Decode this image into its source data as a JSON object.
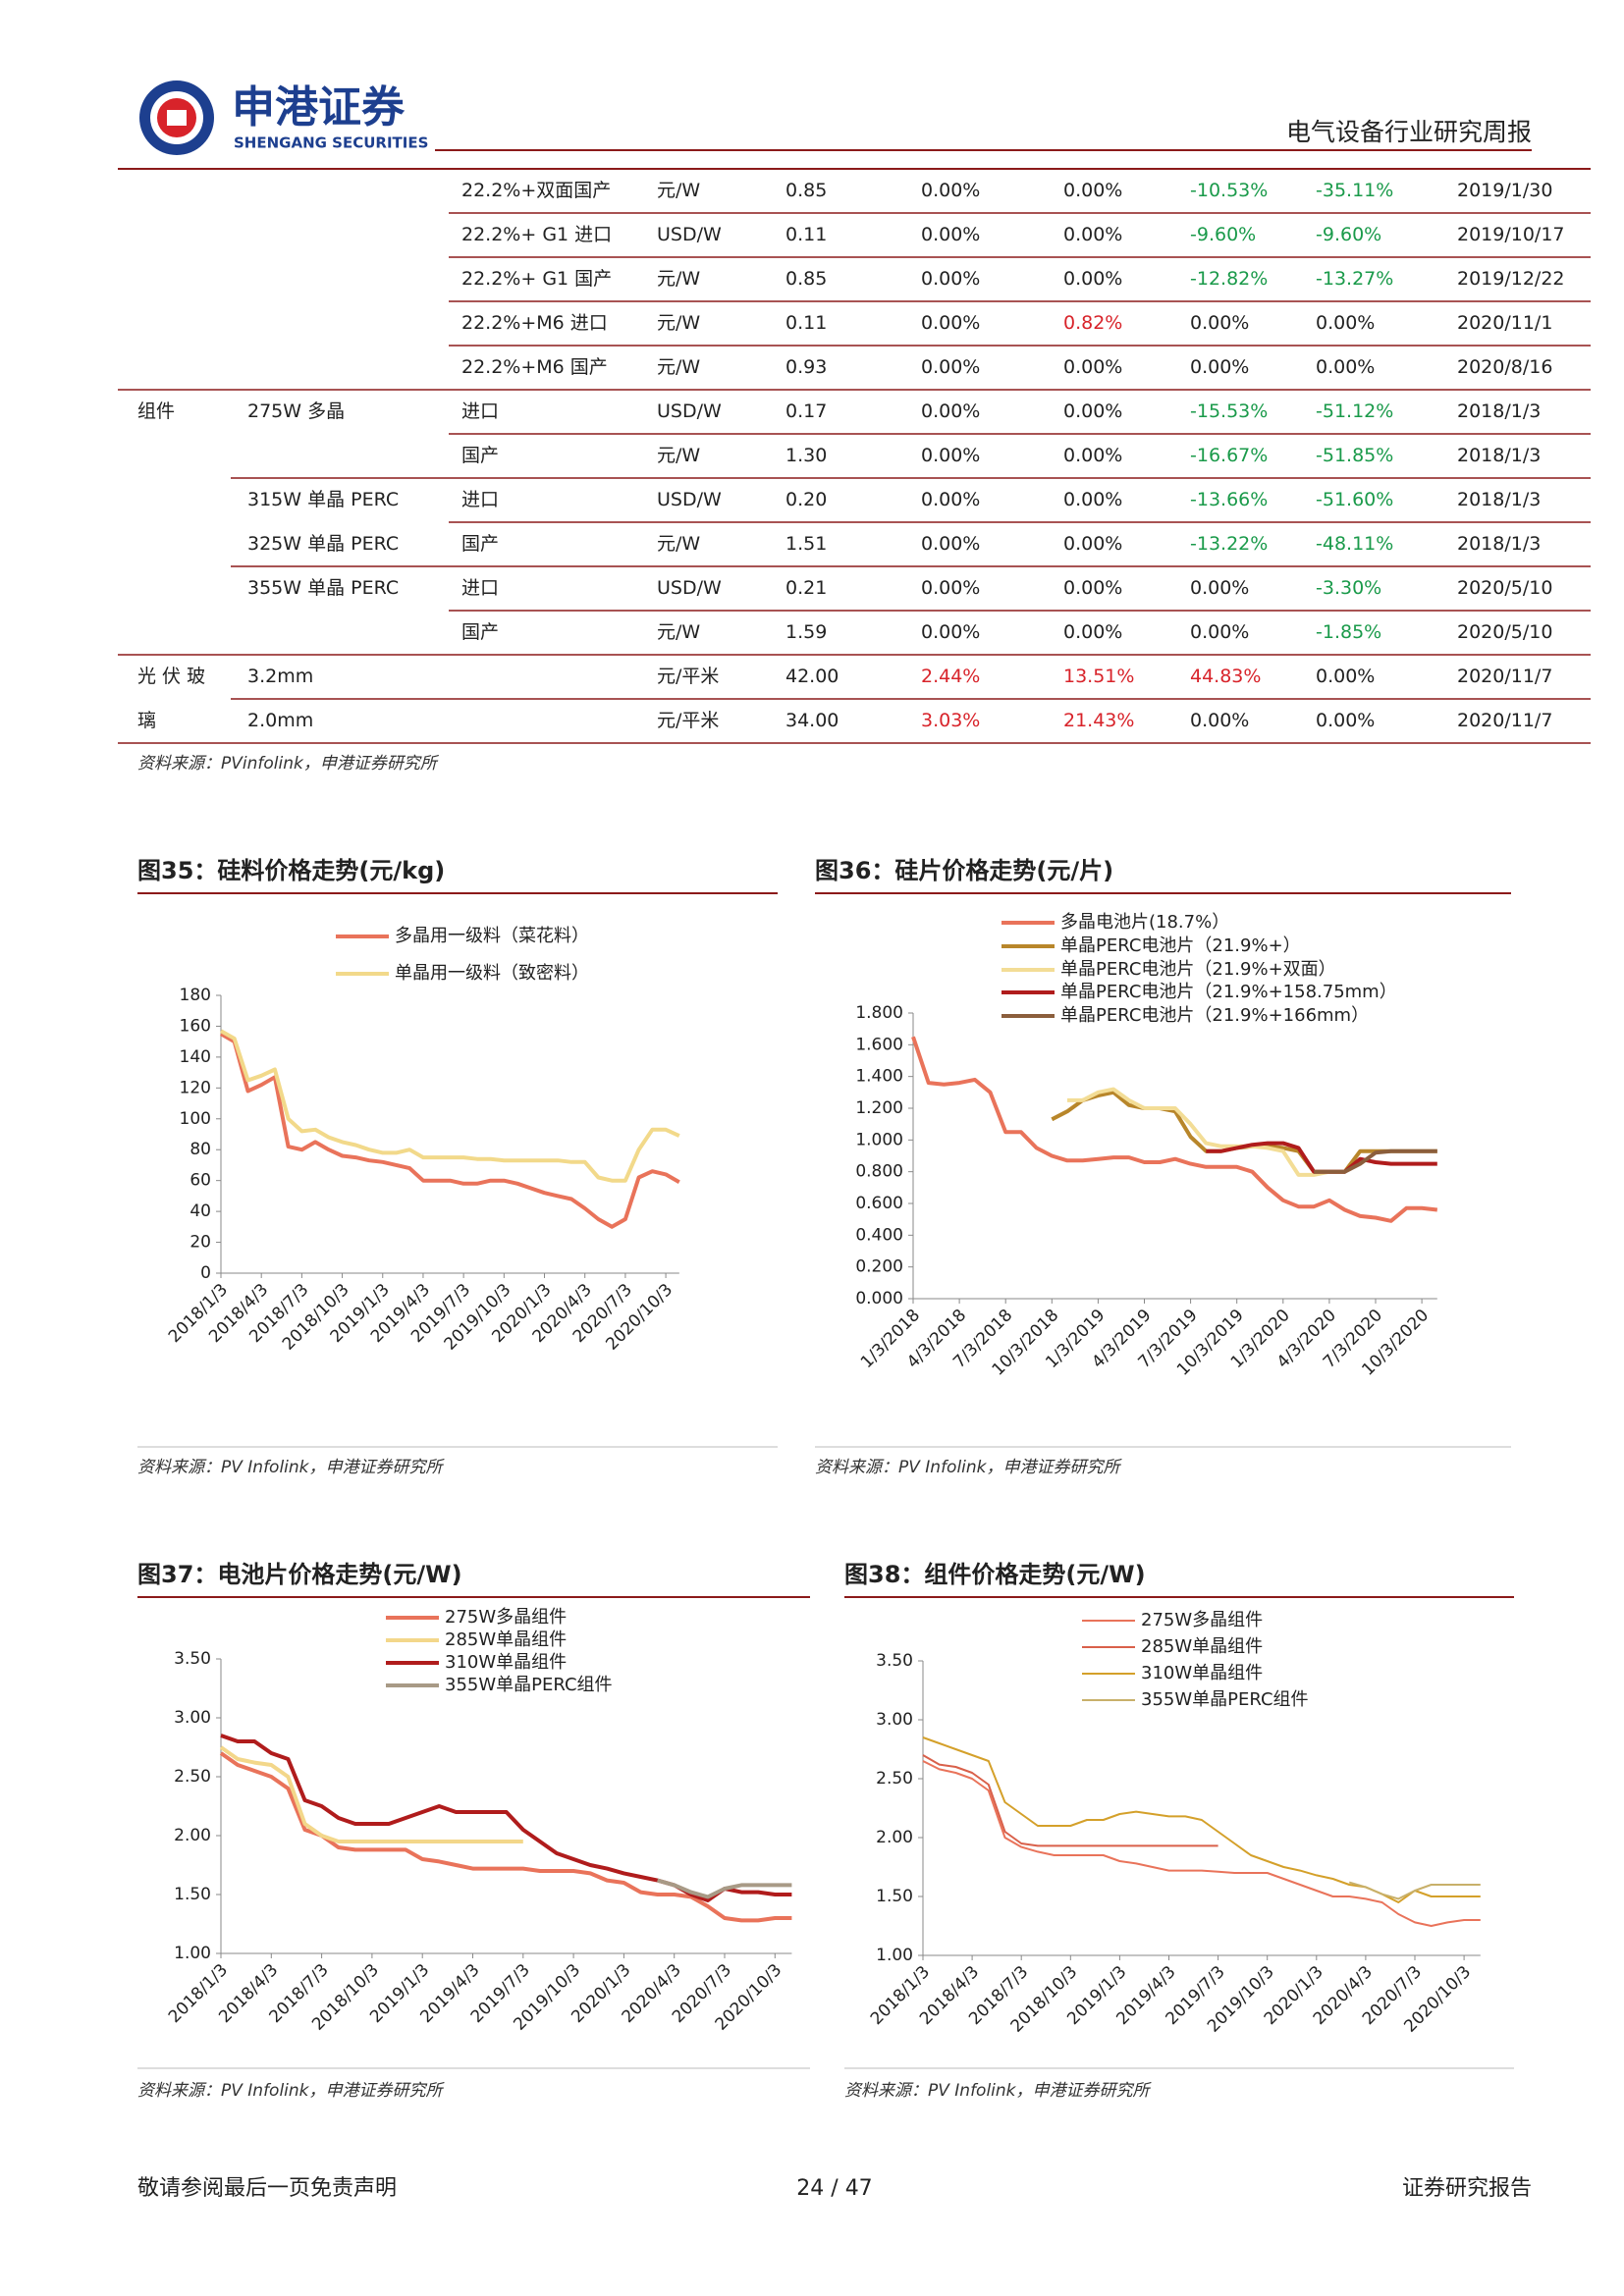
{
  "header": {
    "company": "申港证券",
    "company_en": "SHENGANG SECURITIES",
    "report_title": "电气设备行业研究周报"
  },
  "table": {
    "rows": [
      [
        null,
        null,
        "22.2%+双面国产",
        "元/W",
        "0.85",
        "0.00%",
        "0.00%",
        "-10.53%",
        "-35.11%",
        "2019/1/30"
      ],
      [
        null,
        null,
        "22.2%+ G1 进口",
        "USD/W",
        "0.11",
        "0.00%",
        "0.00%",
        "-9.60%",
        "-9.60%",
        "2019/10/17"
      ],
      [
        null,
        null,
        "22.2%+ G1 国产",
        "元/W",
        "0.85",
        "0.00%",
        "0.00%",
        "-12.82%",
        "-13.27%",
        "2019/12/22"
      ],
      [
        null,
        null,
        "22.2%+M6 进口",
        "元/W",
        "0.11",
        "0.00%",
        "0.82%",
        "0.00%",
        "0.00%",
        "2020/11/1"
      ],
      [
        null,
        null,
        "22.2%+M6 国产",
        "元/W",
        "0.93",
        "0.00%",
        "0.00%",
        "0.00%",
        "0.00%",
        "2020/8/16"
      ],
      [
        "组件",
        "275W 多晶",
        "进口",
        "USD/W",
        "0.17",
        "0.00%",
        "0.00%",
        "-15.53%",
        "-51.12%",
        "2018/1/3"
      ],
      [
        null,
        null,
        "国产",
        "元/W",
        "1.30",
        "0.00%",
        "0.00%",
        "-16.67%",
        "-51.85%",
        "2018/1/3"
      ],
      [
        null,
        "315W 单晶 PERC",
        "进口",
        "USD/W",
        "0.20",
        "0.00%",
        "0.00%",
        "-13.66%",
        "-51.60%",
        "2018/1/3"
      ],
      [
        null,
        "325W 单晶 PERC",
        "国产",
        "元/W",
        "1.51",
        "0.00%",
        "0.00%",
        "-13.22%",
        "-48.11%",
        "2018/1/3"
      ],
      [
        null,
        "355W 单晶 PERC",
        "进口",
        "USD/W",
        "0.21",
        "0.00%",
        "0.00%",
        "0.00%",
        "-3.30%",
        "2020/5/10"
      ],
      [
        null,
        null,
        "国产",
        "元/W",
        "1.59",
        "0.00%",
        "0.00%",
        "0.00%",
        "-1.85%",
        "2020/5/10"
      ],
      [
        "光 伏 玻",
        "3.2mm",
        null,
        "元/平米",
        "42.00",
        "2.44%",
        "13.51%",
        "44.83%",
        "0.00%",
        "2020/11/7"
      ],
      [
        "璃",
        "2.0mm",
        null,
        "元/平米",
        "34.00",
        "3.03%",
        "21.43%",
        "0.00%",
        "0.00%",
        "2020/11/7"
      ]
    ],
    "source": "资料来源：PVinfolink，申港证券研究所"
  },
  "chart_data": [
    {
      "type": "line",
      "title": "图35：硅料价格走势(元/kg)",
      "source": "资料来源：PV Infolink，申港证券研究所",
      "categories": [
        "2018/1/3",
        null,
        null,
        "2018/4/3",
        null,
        null,
        "2018/7/3",
        null,
        null,
        "2018/10/3",
        null,
        null,
        "2019/1/3",
        null,
        null,
        "2019/4/3",
        null,
        null,
        "2019/7/3",
        null,
        null,
        "2019/10/3",
        null,
        null,
        "2020/1/3",
        null,
        null,
        "2020/4/3",
        null,
        null,
        "2020/7/3",
        null,
        null,
        "2020/10/3",
        null
      ],
      "ylim": [
        0,
        180
      ],
      "yticks": [
        0,
        20,
        40,
        60,
        80,
        100,
        120,
        140,
        160,
        180
      ],
      "series": [
        {
          "name": "多晶用一级料（菜花料）",
          "color": "#e9735a",
          "values": [
            155,
            150,
            118,
            122,
            127,
            82,
            80,
            85,
            80,
            76,
            75,
            73,
            72,
            70,
            68,
            60,
            60,
            60,
            58,
            58,
            60,
            60,
            58,
            55,
            52,
            50,
            48,
            42,
            35,
            30,
            35,
            62,
            66,
            64,
            59
          ]
        },
        {
          "name": "单晶用一级料（致密料）",
          "color": "#f2d98a",
          "values": [
            157,
            152,
            125,
            128,
            132,
            100,
            92,
            93,
            88,
            85,
            83,
            80,
            78,
            78,
            80,
            75,
            75,
            75,
            75,
            74,
            74,
            73,
            73,
            73,
            73,
            73,
            72,
            72,
            62,
            60,
            60,
            80,
            93,
            93,
            89
          ]
        }
      ]
    },
    {
      "type": "line",
      "title": "图36：硅片价格走势(元/片)",
      "source": "资料来源：PV Infolink，申港证券研究所",
      "categories": [
        "1/3/2018",
        null,
        null,
        "4/3/2018",
        null,
        null,
        "7/3/2018",
        null,
        null,
        "10/3/2018",
        null,
        null,
        "1/3/2019",
        null,
        null,
        "4/3/2019",
        null,
        null,
        "7/3/2019",
        null,
        null,
        "10/3/2019",
        null,
        null,
        "1/3/2020",
        null,
        null,
        "4/3/2020",
        null,
        null,
        "7/3/2020",
        null,
        null,
        "10/3/2020",
        null
      ],
      "ylim": [
        0,
        1.8
      ],
      "yticks": [
        {
          "value": 0,
          "label": "0.000"
        },
        {
          "value": 0.2,
          "label": "0.200"
        },
        {
          "value": 0.4,
          "label": "0.400"
        },
        {
          "value": 0.6,
          "label": "0.600"
        },
        {
          "value": 0.8,
          "label": "0.800"
        },
        {
          "value": 1,
          "label": "1.000"
        },
        {
          "value": 1.2,
          "label": "1.200"
        },
        {
          "value": 1.4,
          "label": "1.400"
        },
        {
          "value": 1.6,
          "label": "1.600"
        },
        {
          "value": 1.8,
          "label": "1.800"
        }
      ],
      "series": [
        {
          "name": "多晶电池片(18.7%）",
          "color": "#e9735a",
          "values": [
            1.65,
            1.36,
            1.35,
            1.36,
            1.38,
            1.3,
            1.05,
            1.05,
            0.95,
            0.9,
            0.87,
            0.87,
            0.88,
            0.89,
            0.89,
            0.86,
            0.86,
            0.88,
            0.85,
            0.83,
            0.83,
            0.83,
            0.8,
            0.7,
            0.62,
            0.58,
            0.58,
            0.62,
            0.56,
            0.52,
            0.51,
            0.49,
            0.57,
            0.57,
            0.56
          ]
        },
        {
          "name": "单晶PERC电池片（21.9%+）",
          "color": "#b8862a",
          "values": [
            null,
            null,
            null,
            null,
            null,
            null,
            null,
            null,
            null,
            1.13,
            1.18,
            1.25,
            1.28,
            1.3,
            1.22,
            1.2,
            1.2,
            1.18,
            1.02,
            0.93,
            0.93,
            0.95,
            0.96,
            0.96,
            0.95,
            0.93,
            0.8,
            0.8,
            0.8,
            0.93,
            0.93,
            0.93,
            0.93,
            0.93,
            0.93
          ]
        },
        {
          "name": "单晶PERC电池片（21.9%+双面）",
          "color": "#f3dd96",
          "values": [
            null,
            null,
            null,
            null,
            null,
            null,
            null,
            null,
            null,
            null,
            1.25,
            1.25,
            1.3,
            1.32,
            1.25,
            1.2,
            1.2,
            1.2,
            1.1,
            0.98,
            0.96,
            0.96,
            0.96,
            0.95,
            0.93,
            0.78,
            0.78,
            0.8,
            null,
            null,
            null,
            null,
            null,
            null,
            null
          ]
        },
        {
          "name": "单晶PERC电池片（21.9%+158.75mm）",
          "color": "#b01c1c",
          "values": [
            null,
            null,
            null,
            null,
            null,
            null,
            null,
            null,
            null,
            null,
            null,
            null,
            null,
            null,
            null,
            null,
            null,
            null,
            null,
            0.93,
            0.93,
            0.95,
            0.97,
            0.98,
            0.98,
            0.95,
            0.8,
            0.8,
            0.8,
            0.88,
            0.86,
            0.85,
            0.85,
            0.85,
            0.85
          ]
        },
        {
          "name": "单晶PERC电池片（21.9%+166mm）",
          "color": "#8b5e3c",
          "values": [
            null,
            null,
            null,
            null,
            null,
            null,
            null,
            null,
            null,
            null,
            null,
            null,
            null,
            null,
            null,
            null,
            null,
            null,
            null,
            null,
            null,
            null,
            null,
            null,
            null,
            null,
            0.8,
            0.8,
            0.8,
            0.85,
            0.92,
            0.93,
            0.93,
            0.93,
            0.93
          ]
        }
      ]
    },
    {
      "type": "line",
      "title": "图37：电池片价格走势(元/W)",
      "source": "资料来源：PV Infolink，申港证券研究所",
      "categories": [
        "2018/1/3",
        null,
        null,
        "2018/4/3",
        null,
        null,
        "2018/7/3",
        null,
        null,
        "2018/10/3",
        null,
        null,
        "2019/1/3",
        null,
        null,
        "2019/4/3",
        null,
        null,
        "2019/7/3",
        null,
        null,
        "2019/10/3",
        null,
        null,
        "2020/1/3",
        null,
        null,
        "2020/4/3",
        null,
        null,
        "2020/7/3",
        null,
        null,
        "2020/10/3",
        null
      ],
      "ylim": [
        1,
        3.5
      ],
      "yticks": [
        {
          "value": 1,
          "label": "1.00"
        },
        {
          "value": 1.5,
          "label": "1.50"
        },
        {
          "value": 2,
          "label": "2.00"
        },
        {
          "value": 2.5,
          "label": "2.50"
        },
        {
          "value": 3,
          "label": "3.00"
        },
        {
          "value": 3.5,
          "label": "3.50"
        }
      ],
      "series": [
        {
          "name": "275W多晶组件",
          "color": "#e9735a",
          "values": [
            2.7,
            2.6,
            2.55,
            2.5,
            2.4,
            2.05,
            2.0,
            1.9,
            1.88,
            1.88,
            1.88,
            1.88,
            1.8,
            1.78,
            1.75,
            1.72,
            1.72,
            1.72,
            1.72,
            1.7,
            1.7,
            1.7,
            1.68,
            1.62,
            1.6,
            1.52,
            1.5,
            1.5,
            1.48,
            1.4,
            1.3,
            1.28,
            1.28,
            1.3,
            1.3
          ]
        },
        {
          "name": "285W单晶组件",
          "color": "#f3d78a",
          "values": [
            2.75,
            2.65,
            2.62,
            2.6,
            2.5,
            2.1,
            2.0,
            1.95,
            1.95,
            1.95,
            1.95,
            1.95,
            1.95,
            1.95,
            1.95,
            1.95,
            1.95,
            1.95,
            1.95,
            null,
            null,
            null,
            null,
            null,
            null,
            null,
            null,
            null,
            null,
            null,
            null,
            null,
            null,
            null,
            null
          ]
        },
        {
          "name": "310W单晶组件",
          "color": "#b01c1c",
          "values": [
            2.85,
            2.8,
            2.8,
            2.7,
            2.65,
            2.3,
            2.25,
            2.15,
            2.1,
            2.1,
            2.1,
            2.15,
            2.2,
            2.25,
            2.2,
            2.2,
            2.2,
            2.2,
            2.05,
            1.95,
            1.85,
            1.8,
            1.75,
            1.72,
            1.68,
            1.65,
            1.62,
            1.58,
            1.5,
            1.45,
            1.55,
            1.52,
            1.52,
            1.5,
            1.5
          ]
        },
        {
          "name": "355W单晶PERC组件",
          "color": "#a89a86",
          "values": [
            null,
            null,
            null,
            null,
            null,
            null,
            null,
            null,
            null,
            null,
            null,
            null,
            null,
            null,
            null,
            null,
            null,
            null,
            null,
            null,
            null,
            null,
            null,
            null,
            null,
            null,
            1.62,
            1.58,
            1.52,
            1.48,
            1.55,
            1.58,
            1.58,
            1.58,
            1.58
          ]
        }
      ]
    },
    {
      "type": "line",
      "title": "图38：组件价格走势(元/W)",
      "source": "资料来源：PV Infolink，申港证券研究所",
      "categories": [
        "2018/1/3",
        null,
        null,
        "2018/4/3",
        null,
        null,
        "2018/7/3",
        null,
        null,
        "2018/10/3",
        null,
        null,
        "2019/1/3",
        null,
        null,
        "2019/4/3",
        null,
        null,
        "2019/7/3",
        null,
        null,
        "2019/10/3",
        null,
        null,
        "2020/1/3",
        null,
        null,
        "2020/4/3",
        null,
        null,
        "2020/7/3",
        null,
        null,
        "2020/10/3",
        null
      ],
      "ylim": [
        1,
        3.5
      ],
      "yticks": [
        {
          "value": 1,
          "label": "1.00"
        },
        {
          "value": 1.5,
          "label": "1.50"
        },
        {
          "value": 2,
          "label": "2.00"
        },
        {
          "value": 2.5,
          "label": "2.50"
        },
        {
          "value": 3,
          "label": "3.00"
        },
        {
          "value": 3.5,
          "label": "3.50"
        }
      ],
      "series": [
        {
          "name": "275W多晶组件",
          "color": "#e9735a",
          "values": [
            2.65,
            2.58,
            2.55,
            2.5,
            2.4,
            2.0,
            1.92,
            1.88,
            1.85,
            1.85,
            1.85,
            1.85,
            1.8,
            1.78,
            1.75,
            1.72,
            1.72,
            1.72,
            1.71,
            1.7,
            1.7,
            1.7,
            1.65,
            1.6,
            1.55,
            1.5,
            1.5,
            1.48,
            1.45,
            1.35,
            1.28,
            1.25,
            1.28,
            1.3,
            1.3
          ]
        },
        {
          "name": "285W单晶组件",
          "color": "#d9604a",
          "values": [
            2.7,
            2.62,
            2.6,
            2.55,
            2.45,
            2.05,
            1.95,
            1.93,
            1.93,
            1.93,
            1.93,
            1.93,
            1.93,
            1.93,
            1.93,
            1.93,
            1.93,
            1.93,
            1.93,
            null,
            null,
            null,
            null,
            null,
            null,
            null,
            null,
            null,
            null,
            null,
            null,
            null,
            null,
            null,
            null
          ]
        },
        {
          "name": "310W单晶组件",
          "color": "#d4a02a",
          "values": [
            2.85,
            2.8,
            2.75,
            2.7,
            2.65,
            2.3,
            2.2,
            2.1,
            2.1,
            2.1,
            2.15,
            2.15,
            2.2,
            2.22,
            2.2,
            2.18,
            2.18,
            2.15,
            2.05,
            1.95,
            1.85,
            1.8,
            1.75,
            1.72,
            1.68,
            1.65,
            1.6,
            1.58,
            1.52,
            1.45,
            1.55,
            1.5,
            1.5,
            1.5,
            1.5
          ]
        },
        {
          "name": "355W单晶PERC组件",
          "color": "#c8b06a",
          "values": [
            null,
            null,
            null,
            null,
            null,
            null,
            null,
            null,
            null,
            null,
            null,
            null,
            null,
            null,
            null,
            null,
            null,
            null,
            null,
            null,
            null,
            null,
            null,
            null,
            null,
            null,
            1.62,
            1.58,
            1.52,
            1.48,
            1.55,
            1.6,
            1.6,
            1.6,
            1.6
          ]
        }
      ]
    }
  ],
  "footer": {
    "disclaimer": "敬请参阅最后一页免责声明",
    "page": "24 / 47",
    "doc_type": "证券研究报告"
  }
}
